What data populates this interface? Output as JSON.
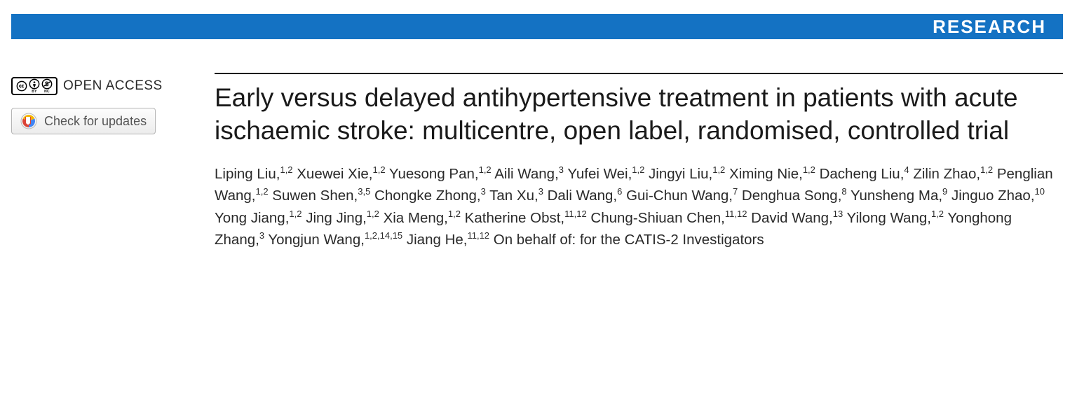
{
  "banner": {
    "label": "RESEARCH",
    "bg_color": "#1472c3",
    "text_color": "#ffffff"
  },
  "left": {
    "open_access_label": "OPEN ACCESS",
    "cc_sub_by": "BY",
    "cc_sub_nc": "NC",
    "updates_label": "Check for updates"
  },
  "article": {
    "title": "Early versus delayed antihypertensive treatment in patients with acute ischaemic stroke: multicentre, open label, randomised, controlled trial",
    "authors": [
      {
        "name": "Liping Liu",
        "aff": "1,2"
      },
      {
        "name": "Xuewei Xie",
        "aff": "1,2"
      },
      {
        "name": "Yuesong Pan",
        "aff": "1,2"
      },
      {
        "name": "Aili Wang",
        "aff": "3"
      },
      {
        "name": "Yufei Wei",
        "aff": "1,2"
      },
      {
        "name": "Jingyi Liu",
        "aff": "1,2"
      },
      {
        "name": "Ximing Nie",
        "aff": "1,2"
      },
      {
        "name": "Dacheng Liu",
        "aff": "4"
      },
      {
        "name": "Zilin Zhao",
        "aff": "1,2"
      },
      {
        "name": "Penglian Wang",
        "aff": "1,2"
      },
      {
        "name": "Suwen Shen",
        "aff": "3,5"
      },
      {
        "name": "Chongke Zhong",
        "aff": "3"
      },
      {
        "name": "Tan Xu",
        "aff": "3"
      },
      {
        "name": "Dali Wang",
        "aff": "6"
      },
      {
        "name": "Gui-Chun Wang",
        "aff": "7"
      },
      {
        "name": "Denghua Song",
        "aff": "8"
      },
      {
        "name": "Yunsheng Ma",
        "aff": "9"
      },
      {
        "name": "Jinguo Zhao",
        "aff": "10"
      },
      {
        "name": "Yong Jiang",
        "aff": "1,2"
      },
      {
        "name": "Jing Jing",
        "aff": "1,2"
      },
      {
        "name": "Xia Meng",
        "aff": "1,2"
      },
      {
        "name": "Katherine Obst",
        "aff": "11,12"
      },
      {
        "name": "Chung-Shiuan Chen",
        "aff": "11,12"
      },
      {
        "name": "David Wang",
        "aff": "13"
      },
      {
        "name": "Yilong Wang",
        "aff": "1,2"
      },
      {
        "name": "Yonghong Zhang",
        "aff": "3"
      },
      {
        "name": "Yongjun Wang",
        "aff": "1,2,14,15"
      },
      {
        "name": "Jiang He",
        "aff": "11,12"
      }
    ],
    "on_behalf": "On behalf of: for the CATIS-2 Investigators"
  }
}
